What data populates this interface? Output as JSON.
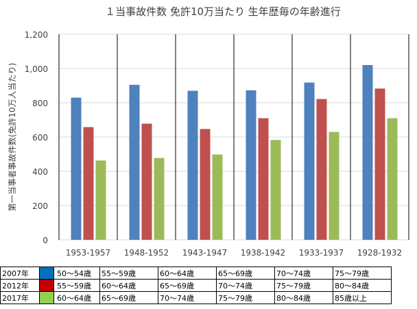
{
  "chart_data": {
    "type": "bar",
    "title": "１当事故件数  免許10万当たり  生年歴毎の年齢進行",
    "ylabel": "第一当事者事故件数(免許10万人当たり)",
    "xlabel": "",
    "ylim": [
      0,
      1200
    ],
    "yticks": [
      0,
      200,
      400,
      600,
      800,
      1000,
      1200
    ],
    "ytick_labels": [
      "0",
      "200",
      "400",
      "600",
      "800",
      "1,000",
      "1,200"
    ],
    "grid": true,
    "categories": [
      "1953-1957",
      "1948-1952",
      "1943-1947",
      "1938-1942",
      "1933-1937",
      "1928-1932"
    ],
    "series": [
      {
        "name": "2007年",
        "color": "#4f81bd",
        "values": [
          830,
          905,
          870,
          873,
          918,
          1020
        ]
      },
      {
        "name": "2012年",
        "color": "#c0504d",
        "values": [
          658,
          678,
          647,
          710,
          822,
          883
        ]
      },
      {
        "name": "2017年",
        "color": "#9bbb59",
        "values": [
          463,
          478,
          498,
          583,
          630,
          710
        ]
      }
    ]
  },
  "table": {
    "rows": [
      {
        "year": "2007年",
        "swatch": "#0070c0",
        "ages": [
          "50～54歳",
          "55～59歳",
          "60～64歳",
          "65～69歳",
          "70～74歳",
          "75～79歳"
        ]
      },
      {
        "year": "2012年",
        "swatch": "#c00000",
        "ages": [
          "55～59歳",
          "60～64歳",
          "65～69歳",
          "70～74歳",
          "75～79歳",
          "80～84歳"
        ]
      },
      {
        "year": "2017年",
        "swatch": "#92d050",
        "ages": [
          "60～64歳",
          "65～69歳",
          "70～74歳",
          "75～79歳",
          "80～84歳",
          "85歳以上"
        ]
      }
    ]
  }
}
